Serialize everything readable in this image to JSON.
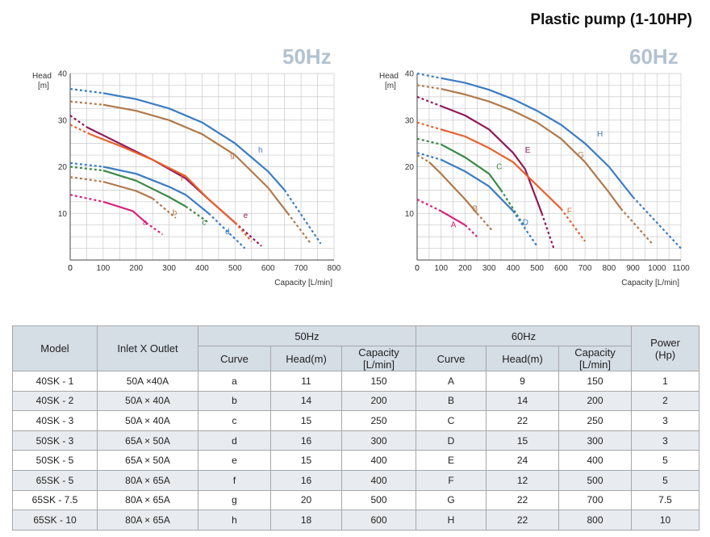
{
  "page": {
    "title": "Plastic pump (1-10HP)"
  },
  "chart_data": [
    {
      "type": "line",
      "title": "50Hz",
      "xlabel": "Capacity [L/min]",
      "ylabel": "Head [m]",
      "xlim": [
        0,
        800
      ],
      "ylim": [
        0,
        40
      ],
      "xticks": [
        0,
        100,
        200,
        300,
        400,
        500,
        600,
        700,
        800
      ],
      "yticks": [
        10,
        20,
        30,
        40
      ],
      "grid": true,
      "series": [
        {
          "name": "a",
          "color": "#d6257e",
          "points": [
            [
              0,
              14
            ],
            [
              100,
              12.5
            ],
            [
              190,
              10.5
            ],
            [
              230,
              8
            ],
            [
              280,
              5.5
            ]
          ]
        },
        {
          "name": "b",
          "color": "#b07a4c",
          "points": [
            [
              0,
              17.8
            ],
            [
              100,
              16.8
            ],
            [
              200,
              14.8
            ],
            [
              250,
              13.2
            ],
            [
              320,
              9
            ]
          ]
        },
        {
          "name": "c",
          "color": "#3a8a45",
          "points": [
            [
              0,
              20
            ],
            [
              100,
              19.2
            ],
            [
              200,
              17
            ],
            [
              300,
              13.5
            ],
            [
              350,
              11.5
            ],
            [
              420,
              8
            ]
          ]
        },
        {
          "name": "d",
          "color": "#3b7dc4",
          "points": [
            [
              0,
              20.8
            ],
            [
              100,
              20
            ],
            [
              200,
              18.5
            ],
            [
              300,
              15.7
            ],
            [
              350,
              14
            ],
            [
              420,
              10
            ],
            [
              530,
              2.5
            ]
          ]
        },
        {
          "name": "e",
          "color": "#8f1a5c",
          "points": [
            [
              0,
              31
            ],
            [
              50,
              28.5
            ],
            [
              150,
              25
            ],
            [
              250,
              21.5
            ],
            [
              350,
              17.5
            ],
            [
              420,
              13
            ],
            [
              500,
              8
            ],
            [
              580,
              3
            ]
          ]
        },
        {
          "name": "f",
          "color": "#e8612c",
          "points": [
            [
              0,
              29
            ],
            [
              60,
              27
            ],
            [
              150,
              24.5
            ],
            [
              250,
              21.5
            ],
            [
              350,
              18
            ],
            [
              420,
              13
            ],
            [
              500,
              8
            ],
            [
              550,
              4
            ]
          ]
        },
        {
          "name": "g",
          "color": "#b07a4c",
          "points": [
            [
              0,
              34
            ],
            [
              100,
              33.3
            ],
            [
              200,
              32
            ],
            [
              300,
              30
            ],
            [
              400,
              27
            ],
            [
              500,
              22.5
            ],
            [
              600,
              15.5
            ],
            [
              660,
              10
            ],
            [
              730,
              3.5
            ]
          ]
        },
        {
          "name": "h",
          "color": "#3b7dc4",
          "points": [
            [
              0,
              36.7
            ],
            [
              100,
              35.8
            ],
            [
              200,
              34.5
            ],
            [
              300,
              32.5
            ],
            [
              400,
              29.5
            ],
            [
              500,
              25
            ],
            [
              600,
              19
            ],
            [
              650,
              15
            ],
            [
              760,
              3.5
            ]
          ]
        }
      ],
      "label_positions": [
        {
          "text": "a",
          "x": 220,
          "y": 7.5
        },
        {
          "text": "b",
          "x": 310,
          "y": 9.6
        },
        {
          "text": "c",
          "x": 400,
          "y": 7.5
        },
        {
          "text": "d",
          "x": 470,
          "y": 5.5
        },
        {
          "text": "e",
          "x": 525,
          "y": 9
        },
        {
          "text": "f",
          "x": 335,
          "y": 17
        },
        {
          "text": "g",
          "x": 485,
          "y": 22
        },
        {
          "text": "h",
          "x": 570,
          "y": 23
        }
      ]
    },
    {
      "type": "line",
      "title": "60Hz",
      "xlabel": "Capacity [L/min]",
      "ylabel": "Head [m]",
      "xlim": [
        0,
        1100
      ],
      "ylim": [
        0,
        40
      ],
      "xticks": [
        0,
        100,
        200,
        300,
        400,
        500,
        600,
        700,
        800,
        900,
        1000,
        1100
      ],
      "yticks": [
        10,
        20,
        30,
        40
      ],
      "grid": true,
      "series": [
        {
          "name": "A",
          "color": "#d6257e",
          "points": [
            [
              0,
              13
            ],
            [
              100,
              10.5
            ],
            [
              200,
              7.5
            ],
            [
              250,
              5
            ]
          ]
        },
        {
          "name": "B",
          "color": "#b07a4c",
          "points": [
            [
              0,
              22.5
            ],
            [
              50,
              21
            ],
            [
              100,
              18.5
            ],
            [
              200,
              13
            ],
            [
              250,
              10
            ],
            [
              310,
              6.5
            ]
          ]
        },
        {
          "name": "C",
          "color": "#3a8a45",
          "points": [
            [
              0,
              26
            ],
            [
              100,
              24.8
            ],
            [
              200,
              22
            ],
            [
              300,
              18.5
            ],
            [
              350,
              15
            ],
            [
              450,
              7
            ]
          ]
        },
        {
          "name": "D",
          "color": "#3b7dc4",
          "points": [
            [
              0,
              23
            ],
            [
              100,
              21.5
            ],
            [
              200,
              19
            ],
            [
              300,
              15.8
            ],
            [
              400,
              10.5
            ],
            [
              500,
              3
            ]
          ]
        },
        {
          "name": "E",
          "color": "#8f1a5c",
          "points": [
            [
              0,
              35
            ],
            [
              100,
              33
            ],
            [
              200,
              31
            ],
            [
              300,
              28
            ],
            [
              400,
              23
            ],
            [
              450,
              19.5
            ],
            [
              520,
              10
            ],
            [
              570,
              2.5
            ]
          ]
        },
        {
          "name": "F",
          "color": "#e8612c",
          "points": [
            [
              0,
              29.5
            ],
            [
              100,
              28
            ],
            [
              200,
              26.5
            ],
            [
              300,
              24
            ],
            [
              400,
              21
            ],
            [
              500,
              16
            ],
            [
              600,
              11
            ],
            [
              700,
              4
            ]
          ]
        },
        {
          "name": "G",
          "color": "#b07a4c",
          "points": [
            [
              0,
              37.5
            ],
            [
              100,
              36.7
            ],
            [
              200,
              35.5
            ],
            [
              300,
              34
            ],
            [
              400,
              32
            ],
            [
              500,
              29.5
            ],
            [
              600,
              26
            ],
            [
              700,
              21
            ],
            [
              800,
              14.5
            ],
            [
              850,
              11
            ],
            [
              980,
              3.5
            ]
          ]
        },
        {
          "name": "H",
          "color": "#3b7dc4",
          "points": [
            [
              0,
              40
            ],
            [
              100,
              39
            ],
            [
              200,
              38
            ],
            [
              300,
              36.5
            ],
            [
              400,
              34.5
            ],
            [
              500,
              32
            ],
            [
              600,
              29
            ],
            [
              700,
              25
            ],
            [
              800,
              20
            ],
            [
              900,
              13.5
            ],
            [
              1100,
              2.5
            ]
          ]
        }
      ],
      "label_positions": [
        {
          "text": "A",
          "x": 140,
          "y": 7
        },
        {
          "text": "B",
          "x": 230,
          "y": 10.5
        },
        {
          "text": "C",
          "x": 330,
          "y": 19.5
        },
        {
          "text": "D",
          "x": 440,
          "y": 7.5
        },
        {
          "text": "E",
          "x": 450,
          "y": 23
        },
        {
          "text": "F",
          "x": 625,
          "y": 10
        },
        {
          "text": "G",
          "x": 670,
          "y": 22
        },
        {
          "text": "H",
          "x": 750,
          "y": 26.5
        }
      ]
    }
  ],
  "table": {
    "headers": {
      "model": "Model",
      "inlet_outlet": "Inlet X Outlet",
      "hz50": "50Hz",
      "hz60": "60Hz",
      "power": "Power",
      "power_unit": "(Hp)",
      "curve": "Curve",
      "head": "Head(m)",
      "capacity": "Capacity [L/min]"
    },
    "rows": [
      [
        "40SK - 1",
        "50A ×40A",
        "a",
        "11",
        "150",
        "A",
        "9",
        "150",
        "1"
      ],
      [
        "40SK - 2",
        "50A × 40A",
        "b",
        "14",
        "200",
        "B",
        "14",
        "200",
        "2"
      ],
      [
        "40SK - 3",
        "50A × 40A",
        "c",
        "15",
        "250",
        "C",
        "22",
        "250",
        "3"
      ],
      [
        "50SK - 3",
        "65A × 50A",
        "d",
        "16",
        "300",
        "D",
        "15",
        "300",
        "3"
      ],
      [
        "50SK - 5",
        "65A × 50A",
        "e",
        "15",
        "400",
        "E",
        "24",
        "400",
        "5"
      ],
      [
        "65SK - 5",
        "80A × 65A",
        "f",
        "16",
        "400",
        "F",
        "12",
        "500",
        "5"
      ],
      [
        "65SK - 7.5",
        "80A × 65A",
        "g",
        "20",
        "500",
        "G",
        "22",
        "700",
        "7.5"
      ],
      [
        "65SK - 10",
        "80A × 65A",
        "h",
        "18",
        "600",
        "H",
        "22",
        "800",
        "10"
      ]
    ]
  }
}
